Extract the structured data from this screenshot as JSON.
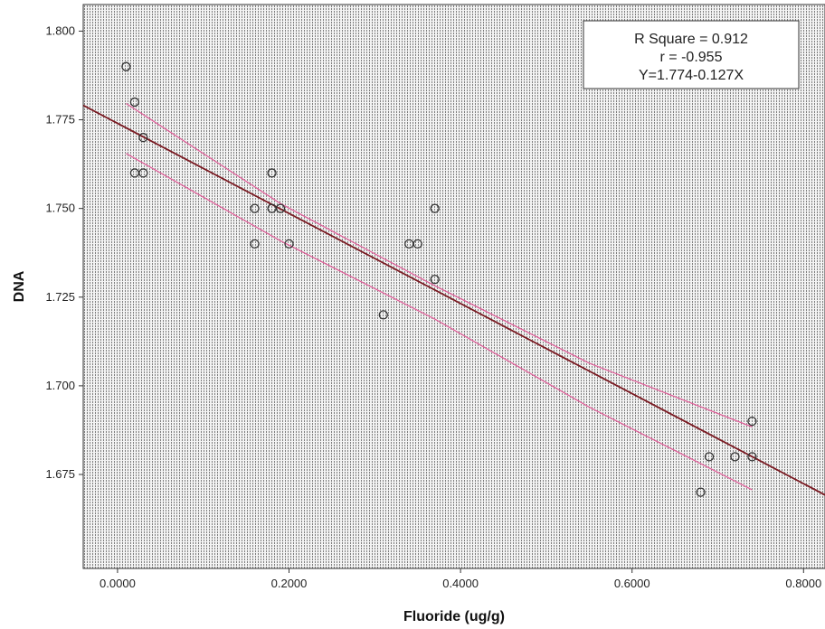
{
  "chart_data": {
    "type": "scatter",
    "xlabel": "Fluoride (ug/g)",
    "ylabel": "DNA",
    "xlim": [
      -0.04,
      0.825
    ],
    "ylim": [
      1.6485,
      1.8075
    ],
    "xticks": [
      0.0,
      0.2,
      0.4,
      0.6,
      0.8
    ],
    "xtick_labels": [
      "0.0000",
      "0.2000",
      "0.4000",
      "0.6000",
      "0.8000"
    ],
    "yticks": [
      1.675,
      1.7,
      1.725,
      1.75,
      1.775,
      1.8
    ],
    "ytick_labels": [
      "1.675",
      "1.700",
      "1.725",
      "1.750",
      "1.775",
      "1.800"
    ],
    "points": [
      {
        "x": 0.01,
        "y": 1.79
      },
      {
        "x": 0.02,
        "y": 1.78
      },
      {
        "x": 0.02,
        "y": 1.76
      },
      {
        "x": 0.03,
        "y": 1.76
      },
      {
        "x": 0.03,
        "y": 1.77
      },
      {
        "x": 0.16,
        "y": 1.75
      },
      {
        "x": 0.16,
        "y": 1.74
      },
      {
        "x": 0.18,
        "y": 1.76
      },
      {
        "x": 0.18,
        "y": 1.75
      },
      {
        "x": 0.19,
        "y": 1.75
      },
      {
        "x": 0.2,
        "y": 1.74
      },
      {
        "x": 0.31,
        "y": 1.72
      },
      {
        "x": 0.34,
        "y": 1.74
      },
      {
        "x": 0.35,
        "y": 1.74
      },
      {
        "x": 0.37,
        "y": 1.75
      },
      {
        "x": 0.37,
        "y": 1.73
      },
      {
        "x": 0.68,
        "y": 1.67
      },
      {
        "x": 0.69,
        "y": 1.68
      },
      {
        "x": 0.72,
        "y": 1.68
      },
      {
        "x": 0.74,
        "y": 1.69
      },
      {
        "x": 0.74,
        "y": 1.68
      }
    ],
    "fit_line": {
      "intercept": 1.774,
      "slope": -0.127,
      "x_range": [
        -0.04,
        0.825
      ]
    },
    "confidence_band": {
      "x": [
        0.01,
        0.19,
        0.37,
        0.55,
        0.74
      ],
      "upper": [
        1.7796,
        1.7514,
        1.7282,
        1.7064,
        1.6884
      ],
      "lower": [
        1.7655,
        1.7409,
        1.7188,
        1.694,
        1.6707
      ]
    },
    "annotation": {
      "lines": [
        "R Square = 0.912",
        "r = -0.955",
        "Y=1.774-0.127X"
      ]
    },
    "background": "dotted-grey",
    "grid": false,
    "colors": {
      "fit_line": "#7a1a22",
      "confidence_band": "#e0609a",
      "marker": "#333333",
      "plot_background": "#d8d8d8"
    }
  }
}
